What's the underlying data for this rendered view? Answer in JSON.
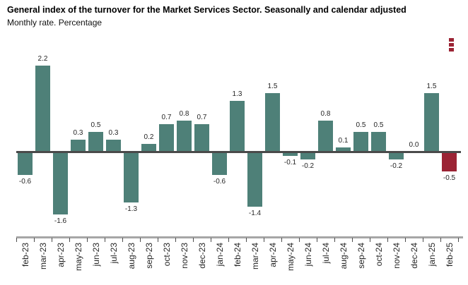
{
  "header": {
    "title": "General index of the turnover for the Market Services Sector. Seasonally and calendar adjusted",
    "subtitle": "Monthly rate. Percentage"
  },
  "context_menu": {
    "icon": "kebab-menu-icon",
    "color": "#9b2334"
  },
  "chart_data": {
    "type": "bar",
    "title": "General index of the turnover for the Market Services Sector. Seasonally and calendar adjusted",
    "subtitle": "Monthly rate. Percentage",
    "categories": [
      "feb-23",
      "mar-23",
      "apr-23",
      "may-23",
      "jun-23",
      "jul-23",
      "aug-23",
      "sep-23",
      "oct-23",
      "nov-23",
      "dec-23",
      "jan-24",
      "feb-24",
      "mar-24",
      "apr-24",
      "may-24",
      "jun-24",
      "jul-24",
      "aug-24",
      "sep-24",
      "oct-24",
      "nov-24",
      "dec-24",
      "jan-25",
      "feb-25"
    ],
    "values": [
      -0.6,
      2.2,
      -1.6,
      0.3,
      0.5,
      0.3,
      -1.3,
      0.2,
      0.7,
      0.8,
      0.7,
      -0.6,
      1.3,
      -1.4,
      1.5,
      -0.1,
      -0.2,
      0.8,
      0.1,
      0.5,
      0.5,
      -0.2,
      0.0,
      1.5,
      -0.5
    ],
    "value_label_decimals": 1,
    "bar_color": "#4e8078",
    "highlight_index": 24,
    "highlight_color": "#9b2334",
    "zero_line_color": "#4a4a4a",
    "axis_line_color": "#a6a6a6",
    "xlabel": "",
    "ylabel": "",
    "ylim": [
      -1.8,
      2.4
    ],
    "grid": false,
    "legend": false,
    "x_labels_rotation": -90,
    "data_labels": true
  }
}
